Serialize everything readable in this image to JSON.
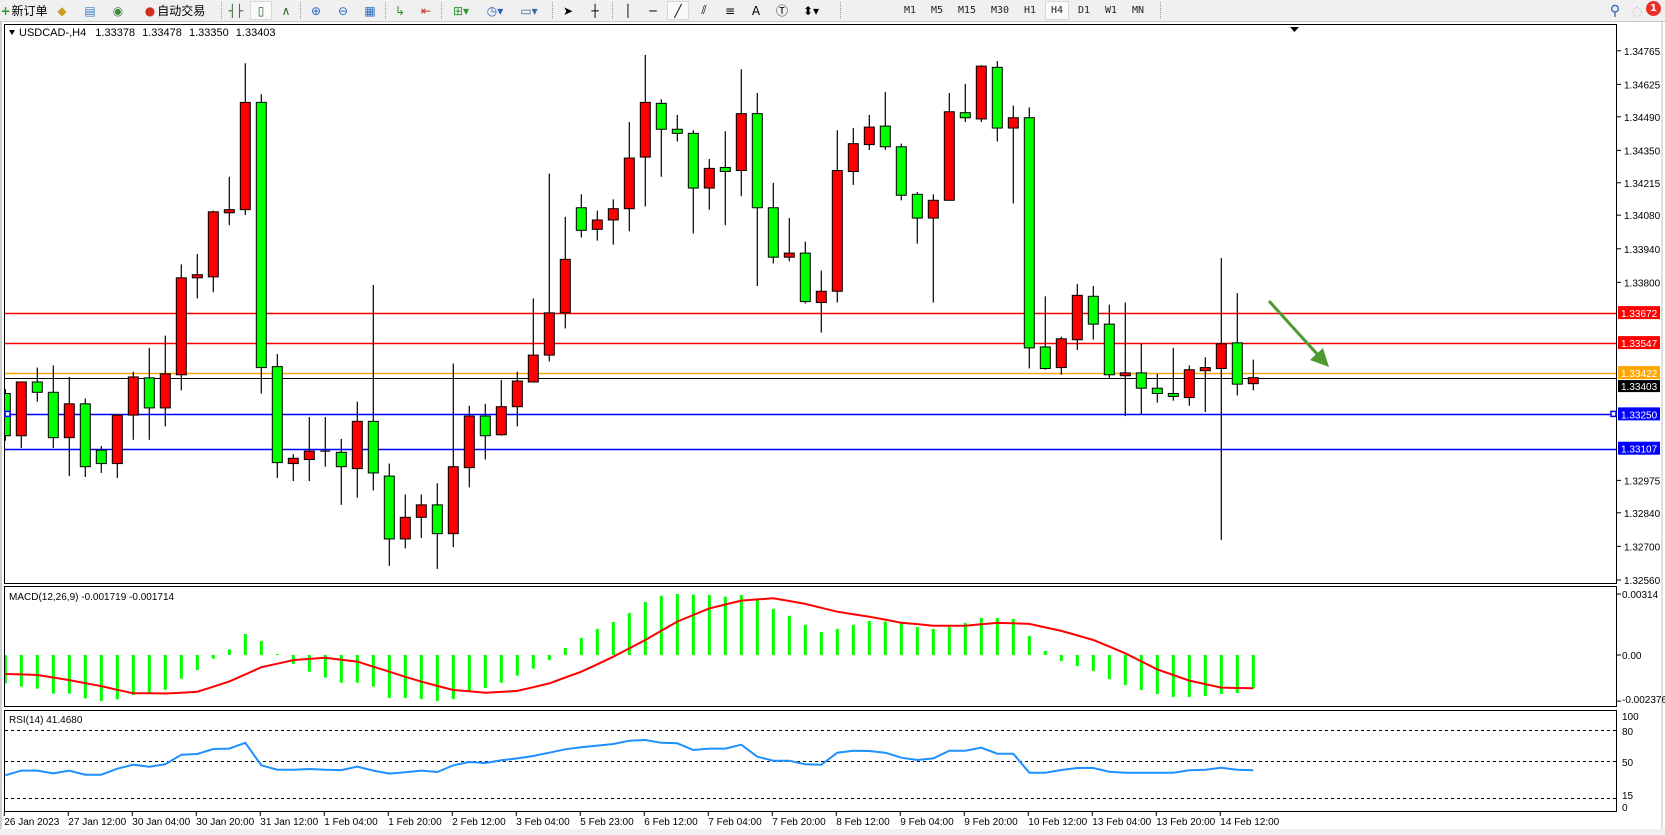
{
  "toolbar": {
    "new_order_label": "新订单",
    "autotrading_label": "自动交易",
    "tools": [
      {
        "icon": "gold-bars-icon"
      },
      {
        "icon": "market-watch-icon"
      },
      {
        "icon": "signals-icon"
      },
      {
        "icon": "bar-chart-icon"
      },
      {
        "icon": "candlestick-icon"
      },
      {
        "icon": "line-chart-icon"
      },
      {
        "icon": "zoom-in-icon"
      },
      {
        "icon": "zoom-out-icon"
      },
      {
        "icon": "tile-windows-icon"
      },
      {
        "icon": "auto-scroll-icon"
      },
      {
        "icon": "chart-shift-icon"
      },
      {
        "icon": "indicators-icon"
      },
      {
        "icon": "periods-clock-icon"
      },
      {
        "icon": "templates-icon"
      },
      {
        "icon": "cursor-icon"
      },
      {
        "icon": "crosshair-icon"
      },
      {
        "icon": "vertical-line-icon"
      },
      {
        "icon": "horizontal-line-icon"
      },
      {
        "icon": "trendline-icon"
      },
      {
        "icon": "equidistant-channel-icon"
      },
      {
        "icon": "fibonacci-icon"
      },
      {
        "icon": "text-icon"
      },
      {
        "icon": "text-label-icon"
      },
      {
        "icon": "arrows-icon"
      }
    ],
    "text_tool_label": "A",
    "timeframes": [
      "M1",
      "M5",
      "M15",
      "M30",
      "H1",
      "H4",
      "D1",
      "W1",
      "MN"
    ],
    "active_timeframe": "H4",
    "notification_count": "1"
  },
  "chart_header": {
    "symbol": "USDCAD-,H4",
    "open": "1.33378",
    "high": "1.33478",
    "low": "1.33350",
    "close": "1.33403"
  },
  "colors": {
    "bull_candle": "#FF0000",
    "bear_candle": "#00FF00",
    "resistance": "#FF0000",
    "pivot": "#FFA500",
    "support": "#0000FF",
    "macd_histogram": "#00FF00",
    "macd_signal": "#FF0000",
    "rsi_line": "#1E90FF",
    "arrow": "#4E9A2E"
  },
  "price_axis": {
    "ticks": [
      "1.34765",
      "1.34625",
      "1.34490",
      "1.34350",
      "1.34215",
      "1.34080",
      "1.33940",
      "1.33800",
      "1.32975",
      "1.32840",
      "1.32700",
      "1.32560"
    ],
    "current_price": "1.33403"
  },
  "levels": [
    {
      "price": "1.33672",
      "type": "resistance"
    },
    {
      "price": "1.33547",
      "type": "resistance"
    },
    {
      "price": "1.33422",
      "type": "pivot"
    },
    {
      "price": "1.33250",
      "type": "support"
    },
    {
      "price": "1.33107",
      "type": "support"
    }
  ],
  "annotation": {
    "type": "arrow",
    "direction": "down-right"
  },
  "time_axis": [
    "26 Jan 2023",
    "27 Jan 12:00",
    "30 Jan 04:00",
    "30 Jan 20:00",
    "31 Jan 12:00",
    "1 Feb 04:00",
    "1 Feb 20:00",
    "2 Feb 12:00",
    "3 Feb 04:00",
    "5 Feb 23:00",
    "6 Feb 12:00",
    "7 Feb 04:00",
    "7 Feb 20:00",
    "8 Feb 12:00",
    "9 Feb 04:00",
    "9 Feb 20:00",
    "10 Feb 12:00",
    "13 Feb 04:00",
    "13 Feb 20:00",
    "14 Feb 12:00"
  ],
  "macd": {
    "label": "MACD(12,26,9) -0.001719 -0.001714",
    "axis_ticks": [
      "0.00314",
      "0.00",
      "-0.002376"
    ]
  },
  "rsi": {
    "label": "RSI(14) 41.4680",
    "axis_ticks": [
      "100",
      "80",
      "50",
      "15",
      "0"
    ]
  },
  "chart_data": {
    "type": "candlestick",
    "ohlc": [
      [
        1.33337,
        1.33355,
        1.3314,
        1.33161
      ],
      [
        1.33161,
        1.33385,
        1.3311,
        1.33385
      ],
      [
        1.33385,
        1.33445,
        1.33303,
        1.33342
      ],
      [
        1.33342,
        1.33454,
        1.3311,
        1.33153
      ],
      [
        1.33153,
        1.33406,
        1.32993,
        1.33294
      ],
      [
        1.33294,
        1.33316,
        1.32989,
        1.33032
      ],
      [
        1.33101,
        1.33118,
        1.33006,
        1.33045
      ],
      [
        1.33045,
        1.33247,
        1.32985,
        1.33247
      ],
      [
        1.33247,
        1.33428,
        1.33144,
        1.33406
      ],
      [
        1.33402,
        1.33527,
        1.33144,
        1.33277
      ],
      [
        1.33277,
        1.33578,
        1.332,
        1.33419
      ],
      [
        1.33415,
        1.33875,
        1.3335,
        1.33819
      ],
      [
        1.33819,
        1.33918,
        1.33733,
        1.33832
      ],
      [
        1.33823,
        1.34099,
        1.33759,
        1.34094
      ],
      [
        1.3409,
        1.3424,
        1.34038,
        1.34103
      ],
      [
        1.34103,
        1.34713,
        1.34081,
        1.3455
      ],
      [
        1.3455,
        1.34584,
        1.33337,
        1.33445
      ],
      [
        1.33449,
        1.33501,
        1.32985,
        1.33049
      ],
      [
        1.33045,
        1.33084,
        1.32972,
        1.33067
      ],
      [
        1.33062,
        1.33239,
        1.32972,
        1.33097
      ],
      [
        1.33097,
        1.33239,
        1.33032,
        1.33097
      ],
      [
        1.33092,
        1.33148,
        1.32873,
        1.33032
      ],
      [
        1.33024,
        1.33303,
        1.32903,
        1.33221
      ],
      [
        1.33221,
        1.33789,
        1.32933,
        1.33006
      ],
      [
        1.32993,
        1.33045,
        1.32619,
        1.32731
      ],
      [
        1.32731,
        1.32916,
        1.32692,
        1.32821
      ],
      [
        1.32821,
        1.32916,
        1.32735,
        1.32873
      ],
      [
        1.32873,
        1.32963,
        1.32606,
        1.32753
      ],
      [
        1.32753,
        1.33462,
        1.32697,
        1.33032
      ],
      [
        1.33028,
        1.33286,
        1.32946,
        1.33243
      ],
      [
        1.33243,
        1.33294,
        1.33062,
        1.33161
      ],
      [
        1.33165,
        1.33393,
        1.33161,
        1.33282
      ],
      [
        1.33282,
        1.33428,
        1.332,
        1.33389
      ],
      [
        1.33385,
        1.33733,
        1.33385,
        1.33497
      ],
      [
        1.33497,
        1.34253,
        1.33471,
        1.33673
      ],
      [
        1.33673,
        1.34073,
        1.33608,
        1.33896
      ],
      [
        1.34111,
        1.34167,
        1.33987,
        1.34017
      ],
      [
        1.34021,
        1.34099,
        1.33974,
        1.3406
      ],
      [
        1.3406,
        1.34146,
        1.33957,
        1.34107
      ],
      [
        1.34107,
        1.34468,
        1.34013,
        1.34318
      ],
      [
        1.34322,
        1.34748,
        1.34116,
        1.3455
      ],
      [
        1.34546,
        1.34563,
        1.3424,
        1.34438
      ],
      [
        1.34438,
        1.34498,
        1.34387,
        1.34421
      ],
      [
        1.34421,
        1.34434,
        1.34004,
        1.34193
      ],
      [
        1.34193,
        1.34314,
        1.34103,
        1.34275
      ],
      [
        1.34279,
        1.3443,
        1.34038,
        1.34262
      ],
      [
        1.34266,
        1.34688,
        1.34159,
        1.34503
      ],
      [
        1.34503,
        1.34589,
        1.33785,
        1.34111
      ],
      [
        1.34111,
        1.34215,
        1.33879,
        1.33905
      ],
      [
        1.33905,
        1.34068,
        1.33888,
        1.33922
      ],
      [
        1.33922,
        1.3397,
        1.33712,
        1.3372
      ],
      [
        1.33716,
        1.33849,
        1.33591,
        1.33763
      ],
      [
        1.33763,
        1.34434,
        1.33716,
        1.34266
      ],
      [
        1.34262,
        1.34443,
        1.34206,
        1.34378
      ],
      [
        1.34374,
        1.34498,
        1.34352,
        1.34447
      ],
      [
        1.34451,
        1.34593,
        1.34352,
        1.34365
      ],
      [
        1.34365,
        1.34378,
        1.34142,
        1.34163
      ],
      [
        1.34167,
        1.34176,
        1.33961,
        1.34068
      ],
      [
        1.34068,
        1.34167,
        1.33716,
        1.34142
      ],
      [
        1.34142,
        1.34589,
        1.34142,
        1.34511
      ],
      [
        1.34507,
        1.34627,
        1.34468,
        1.34486
      ],
      [
        1.34481,
        1.34705,
        1.34468,
        1.34701
      ],
      [
        1.34696,
        1.34722,
        1.34387,
        1.34443
      ],
      [
        1.34443,
        1.34537,
        1.34129,
        1.34486
      ],
      [
        1.34486,
        1.34529,
        1.33441,
        1.33527
      ],
      [
        1.33531,
        1.33742,
        1.33436,
        1.33441
      ],
      [
        1.33445,
        1.33574,
        1.33415,
        1.33565
      ],
      [
        1.33561,
        1.33793,
        1.33518,
        1.33746
      ],
      [
        1.33742,
        1.33785,
        1.33561,
        1.33626
      ],
      [
        1.33626,
        1.33707,
        1.33402,
        1.33415
      ],
      [
        1.33411,
        1.33716,
        1.33243,
        1.33423
      ],
      [
        1.33423,
        1.33544,
        1.33251,
        1.33359
      ],
      [
        1.33359,
        1.33419,
        1.33299,
        1.33337
      ],
      [
        1.33337,
        1.33527,
        1.33307,
        1.33325
      ],
      [
        1.3332,
        1.33454,
        1.33286,
        1.33436
      ],
      [
        1.33432,
        1.33488,
        1.3326,
        1.33445
      ],
      [
        1.33441,
        1.33901,
        1.32727,
        1.33544
      ],
      [
        1.33548,
        1.33755,
        1.33329,
        1.33376
      ],
      [
        1.33378,
        1.33478,
        1.3335,
        1.33403
      ]
    ],
    "price_range": [
      1.3253,
      1.34812
    ],
    "macd_histogram": [
      -0.00146,
      -0.00163,
      -0.00173,
      -0.00199,
      -0.00199,
      -0.00223,
      -0.00237,
      -0.00228,
      -0.00206,
      -0.00197,
      -0.00179,
      -0.00122,
      -0.00077,
      -0.00019,
      0.00029,
      0.00108,
      0.00072,
      5e-05,
      -0.00046,
      -0.00086,
      -0.00117,
      -0.00143,
      -0.00143,
      -0.00163,
      -0.00221,
      -0.00221,
      -0.00227,
      -0.00237,
      -0.00227,
      -0.00189,
      -0.0017,
      -0.00143,
      -0.00106,
      -0.0007,
      -0.00026,
      0.00036,
      0.00088,
      0.00134,
      0.0017,
      0.00216,
      0.00273,
      0.00305,
      0.00314,
      0.00311,
      0.00309,
      0.003,
      0.00309,
      0.00285,
      0.00237,
      0.00202,
      0.00155,
      0.00118,
      0.00134,
      0.00155,
      0.00175,
      0.00172,
      0.00167,
      0.00144,
      0.00134,
      0.00144,
      0.00165,
      0.00191,
      0.00191,
      0.00185,
      0.00098,
      0.00021,
      -0.00031,
      -0.00057,
      -0.00082,
      -0.00124,
      -0.00155,
      -0.0018,
      -0.00201,
      -0.00216,
      -0.00216,
      -0.00211,
      -0.00201,
      -0.00196,
      -0.001719
    ],
    "macd_signal": [
      -0.00098,
      -0.001,
      -0.00103,
      -0.00116,
      -0.00129,
      -0.00145,
      -0.0016,
      -0.00179,
      -0.00197,
      -0.00197,
      -0.00198,
      -0.00194,
      -0.00189,
      -0.00163,
      -0.00136,
      -0.001,
      -0.00063,
      -0.00045,
      -0.00026,
      -0.0002,
      -0.00014,
      -0.00024,
      -0.00034,
      -0.0006,
      -0.00086,
      -0.00112,
      -0.00137,
      -0.00159,
      -0.0018,
      -0.00187,
      -0.00194,
      -0.0019,
      -0.00185,
      -0.00166,
      -0.00146,
      -0.00116,
      -0.00086,
      -0.00048,
      -9e-05,
      0.00034,
      0.00077,
      0.00125,
      0.00172,
      0.00206,
      0.0024,
      0.0026,
      0.0028,
      0.00286,
      0.00292,
      0.00278,
      0.00263,
      0.00243,
      0.00223,
      0.0021,
      0.00197,
      0.00182,
      0.00166,
      0.00159,
      0.00151,
      0.00151,
      0.00151,
      0.00158,
      0.00165,
      0.00163,
      0.0016,
      0.00142,
      0.00124,
      0.00101,
      0.00077,
      0.00043,
      9e-05,
      -0.00033,
      -0.00074,
      -0.00103,
      -0.00132,
      -0.0015,
      -0.00168,
      -0.0017,
      -0.001714
    ],
    "macd_range": [
      -0.002376,
      0.00314
    ],
    "rsi": [
      36.5,
      41,
      41,
      38.4,
      41,
      37.1,
      37.1,
      42.9,
      46.8,
      44.8,
      47.1,
      56.4,
      57.1,
      62,
      62.3,
      68,
      46.2,
      41.9,
      41.9,
      42.6,
      41.9,
      41.5,
      44.8,
      41,
      38.1,
      39.4,
      41,
      39.7,
      46.2,
      49.4,
      48.4,
      51,
      52.9,
      55.2,
      58.4,
      61.7,
      63.6,
      65.2,
      66.8,
      70,
      70.7,
      68,
      67.5,
      61,
      62.3,
      62.3,
      66.1,
      54.5,
      50.6,
      50.6,
      47.1,
      46.8,
      58.4,
      60.3,
      60,
      58.4,
      53.5,
      51.3,
      52.9,
      60.3,
      60.3,
      63.2,
      57.4,
      57.4,
      39,
      39,
      41.6,
      43.6,
      43.6,
      40,
      39,
      39,
      39,
      39,
      41.3,
      41.9,
      43.9,
      41.9,
      41.468
    ],
    "rsi_levels": [
      80,
      50,
      15
    ],
    "rsi_range": [
      0,
      100
    ]
  }
}
